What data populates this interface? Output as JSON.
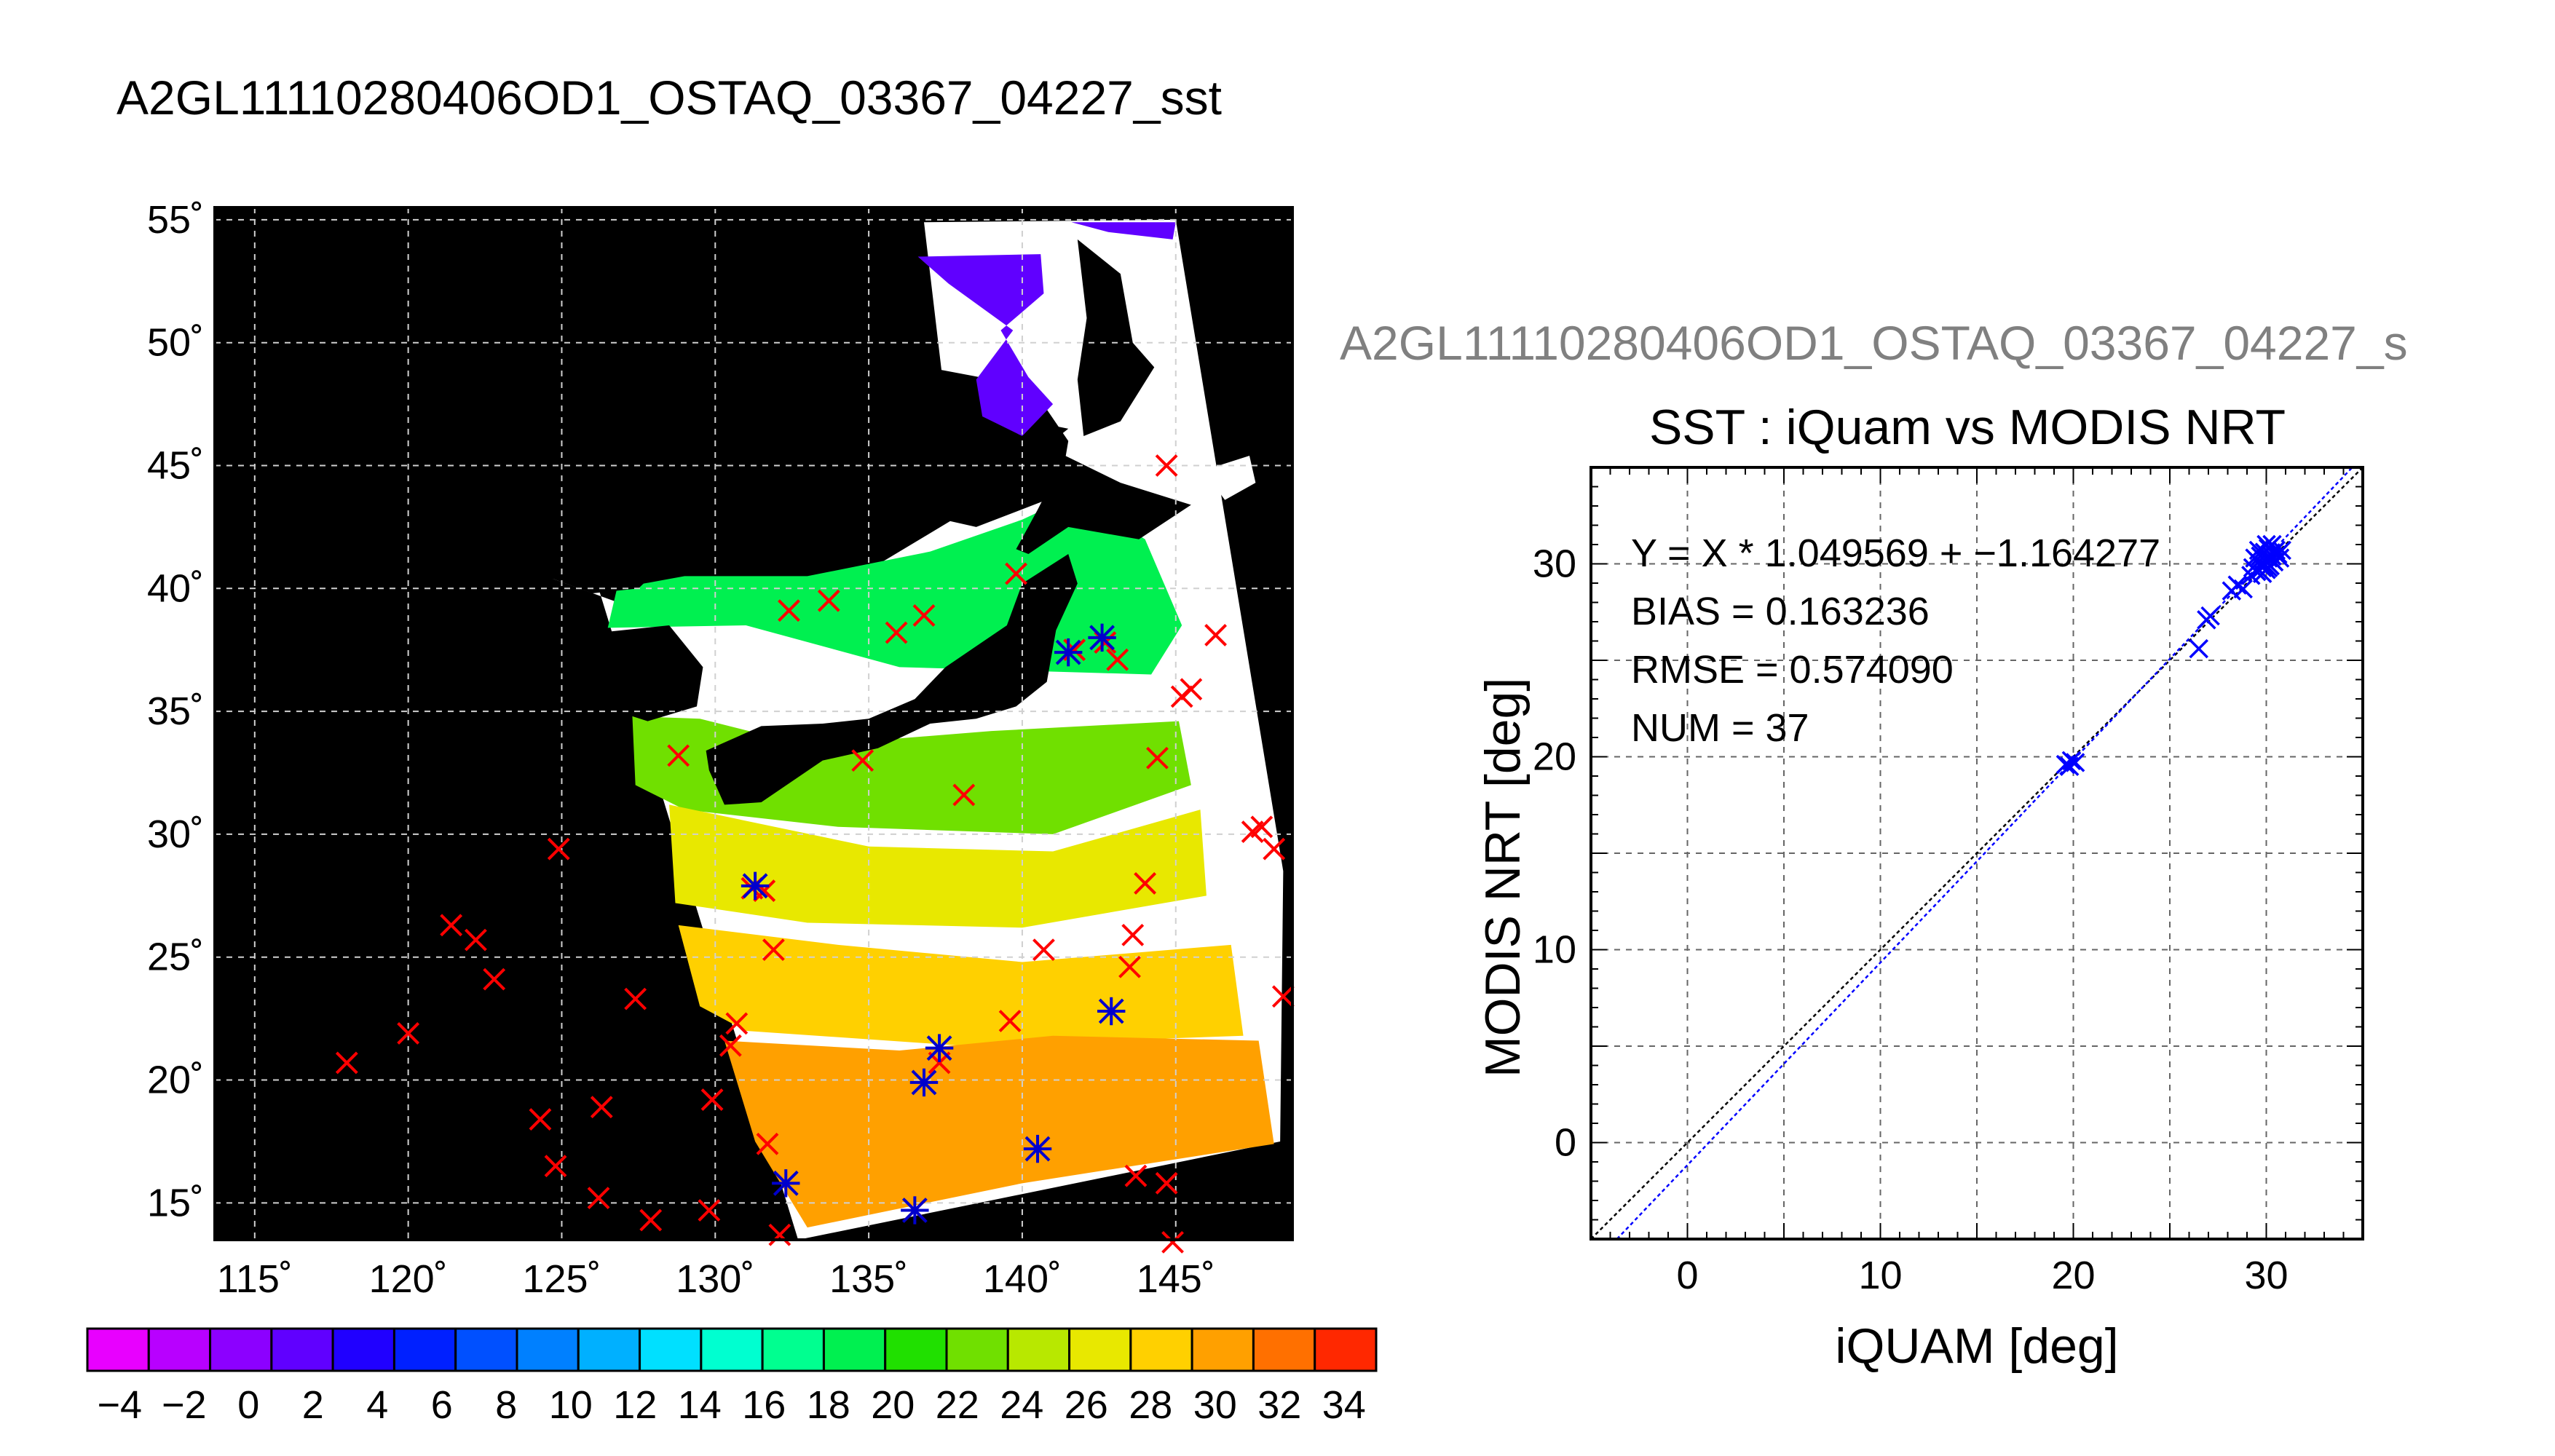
{
  "page_title": "A2GL11110280406OD1_OSTAQ_03367_04227_sst",
  "scatter_page_title": "A2GL11110280406OD1_OSTAQ_03367_04227_s",
  "colors": {
    "map_background": "#000000",
    "cloud_land_mask": "#ffffff",
    "grid": "#d0d0d0",
    "iquam_marker": "#ff0000",
    "matchup_marker": "#0000cc",
    "fit_line": "#0000ff",
    "identity_line": "#000000"
  },
  "chart_data": [
    {
      "type": "heatmap",
      "subtype": "map",
      "title": "A2GL11110280406OD1_OSTAQ_03367_04227_sst",
      "x_ticks": [
        "115˚",
        "120˚",
        "125˚",
        "130˚",
        "135˚",
        "140˚",
        "145˚"
      ],
      "y_ticks": [
        "55˚",
        "50˚",
        "45˚",
        "40˚",
        "35˚",
        "30˚",
        "25˚",
        "20˚",
        "15˚"
      ],
      "xlim": [
        113.7,
        148.8
      ],
      "ylim": [
        13.5,
        55.5
      ],
      "grid": true,
      "colorbar": {
        "ticks": [
          "−4",
          "−2",
          "0",
          "2",
          "4",
          "6",
          "8",
          "10",
          "12",
          "14",
          "16",
          "18",
          "20",
          "22",
          "24",
          "26",
          "28",
          "30",
          "32",
          "34"
        ],
        "range": [
          -5,
          35
        ],
        "colors": [
          "#e800ff",
          "#b800ff",
          "#8c00ff",
          "#6000ff",
          "#2000ff",
          "#0020ff",
          "#0050ff",
          "#0080ff",
          "#00b0ff",
          "#00e0ff",
          "#00ffd0",
          "#00ff90",
          "#00f050",
          "#20e000",
          "#70e000",
          "#b8e800",
          "#e8e800",
          "#ffd000",
          "#ffa000",
          "#ff7000",
          "#ff2800"
        ]
      },
      "iquam_points": [
        [
          118,
          20.7
        ],
        [
          120,
          21.9
        ],
        [
          121.4,
          26.3
        ],
        [
          122.2,
          25.7
        ],
        [
          122.8,
          24.1
        ],
        [
          124.3,
          18.4
        ],
        [
          124.8,
          16.5
        ],
        [
          124.9,
          29.4
        ],
        [
          126.2,
          15.2
        ],
        [
          126.3,
          18.9
        ],
        [
          127.4,
          23.3
        ],
        [
          127.9,
          14.3
        ],
        [
          128.8,
          33.2
        ],
        [
          129.8,
          14.7
        ],
        [
          129.9,
          19.2
        ],
        [
          130.5,
          21.4
        ],
        [
          130.7,
          22.3
        ],
        [
          131.2,
          27.8
        ],
        [
          131.6,
          27.7
        ],
        [
          131.7,
          17.4
        ],
        [
          131.9,
          25.3
        ],
        [
          132.1,
          13.7
        ],
        [
          132.4,
          39.1
        ],
        [
          133.7,
          39.5
        ],
        [
          134.8,
          33
        ],
        [
          135.9,
          38.2
        ],
        [
          136.8,
          38.9
        ],
        [
          136.5,
          14.7
        ],
        [
          137.3,
          20.7
        ],
        [
          138.1,
          31.6
        ],
        [
          139.6,
          22.4
        ],
        [
          139.8,
          40.6
        ],
        [
          140.7,
          25.3
        ],
        [
          141.7,
          37.5
        ],
        [
          142.7,
          37.8
        ],
        [
          143.5,
          24.6
        ],
        [
          143.6,
          25.9
        ],
        [
          143.7,
          16.1
        ],
        [
          143.1,
          37.1
        ],
        [
          144,
          28
        ],
        [
          144.4,
          33.1
        ],
        [
          144.7,
          15.8
        ],
        [
          145.2,
          35.6
        ],
        [
          145.5,
          35.9
        ],
        [
          144.7,
          45
        ],
        [
          146.3,
          38.1
        ],
        [
          147.5,
          30.1
        ],
        [
          147.8,
          30.3
        ],
        [
          148.2,
          29.4
        ],
        [
          148.5,
          23.4
        ],
        [
          144.9,
          13.4
        ]
      ],
      "matchup_points": [
        [
          131.3,
          27.9
        ],
        [
          132.3,
          15.8
        ],
        [
          136.8,
          19.9
        ],
        [
          137.3,
          21.3
        ],
        [
          136.5,
          14.7
        ],
        [
          140.5,
          17.2
        ],
        [
          141.5,
          37.4
        ],
        [
          142.6,
          38
        ],
        [
          142.9,
          22.8
        ]
      ]
    },
    {
      "type": "scatter",
      "title": "SST : iQuam vs MODIS NRT",
      "xlabel": "iQUAM [deg]",
      "ylabel": "MODIS NRT [deg]",
      "xlim": [
        -5,
        35
      ],
      "ylim": [
        -5,
        35
      ],
      "x_ticks": [
        "0",
        "10",
        "20",
        "30"
      ],
      "y_ticks": [
        "0",
        "10",
        "20",
        "30"
      ],
      "grid": true,
      "annotations": [
        "Y = X * 1.049569 + −1.164277",
        "BIAS = 0.163236",
        "RMSE = 0.574090",
        "NUM = 37"
      ],
      "fit": {
        "slope": 1.049569,
        "intercept": -1.164277
      },
      "points": [
        [
          19.6,
          19.6
        ],
        [
          19.9,
          19.8
        ],
        [
          20.1,
          19.7
        ],
        [
          19.8,
          19.5
        ],
        [
          26.5,
          25.6
        ],
        [
          26.9,
          27.1
        ],
        [
          27.1,
          27.3
        ],
        [
          28.2,
          28.6
        ],
        [
          28.5,
          28.9
        ],
        [
          28.8,
          28.7
        ],
        [
          29.3,
          29.8
        ],
        [
          29.5,
          29.6
        ],
        [
          29.6,
          30.1
        ],
        [
          29.7,
          30.4
        ],
        [
          29.8,
          29.8
        ],
        [
          29.9,
          30.2
        ],
        [
          29.9,
          30.6
        ],
        [
          30,
          29.7
        ],
        [
          30.1,
          30.3
        ],
        [
          30.1,
          30.8
        ],
        [
          30.2,
          30.5
        ],
        [
          30.2,
          29.9
        ],
        [
          30.3,
          30.4
        ],
        [
          30.4,
          30.6
        ],
        [
          30.4,
          30.1
        ],
        [
          30.5,
          30.7
        ],
        [
          30.6,
          30.5
        ],
        [
          30.3,
          31.0
        ],
        [
          29.4,
          30.3
        ],
        [
          29.6,
          30.7
        ],
        [
          30.0,
          31.0
        ],
        [
          29.8,
          29.5
        ],
        [
          29.9,
          29.9
        ],
        [
          30.7,
          30.3
        ],
        [
          30.1,
          29.8
        ],
        [
          29.2,
          29.4
        ],
        [
          30.8,
          30.7
        ]
      ]
    }
  ]
}
